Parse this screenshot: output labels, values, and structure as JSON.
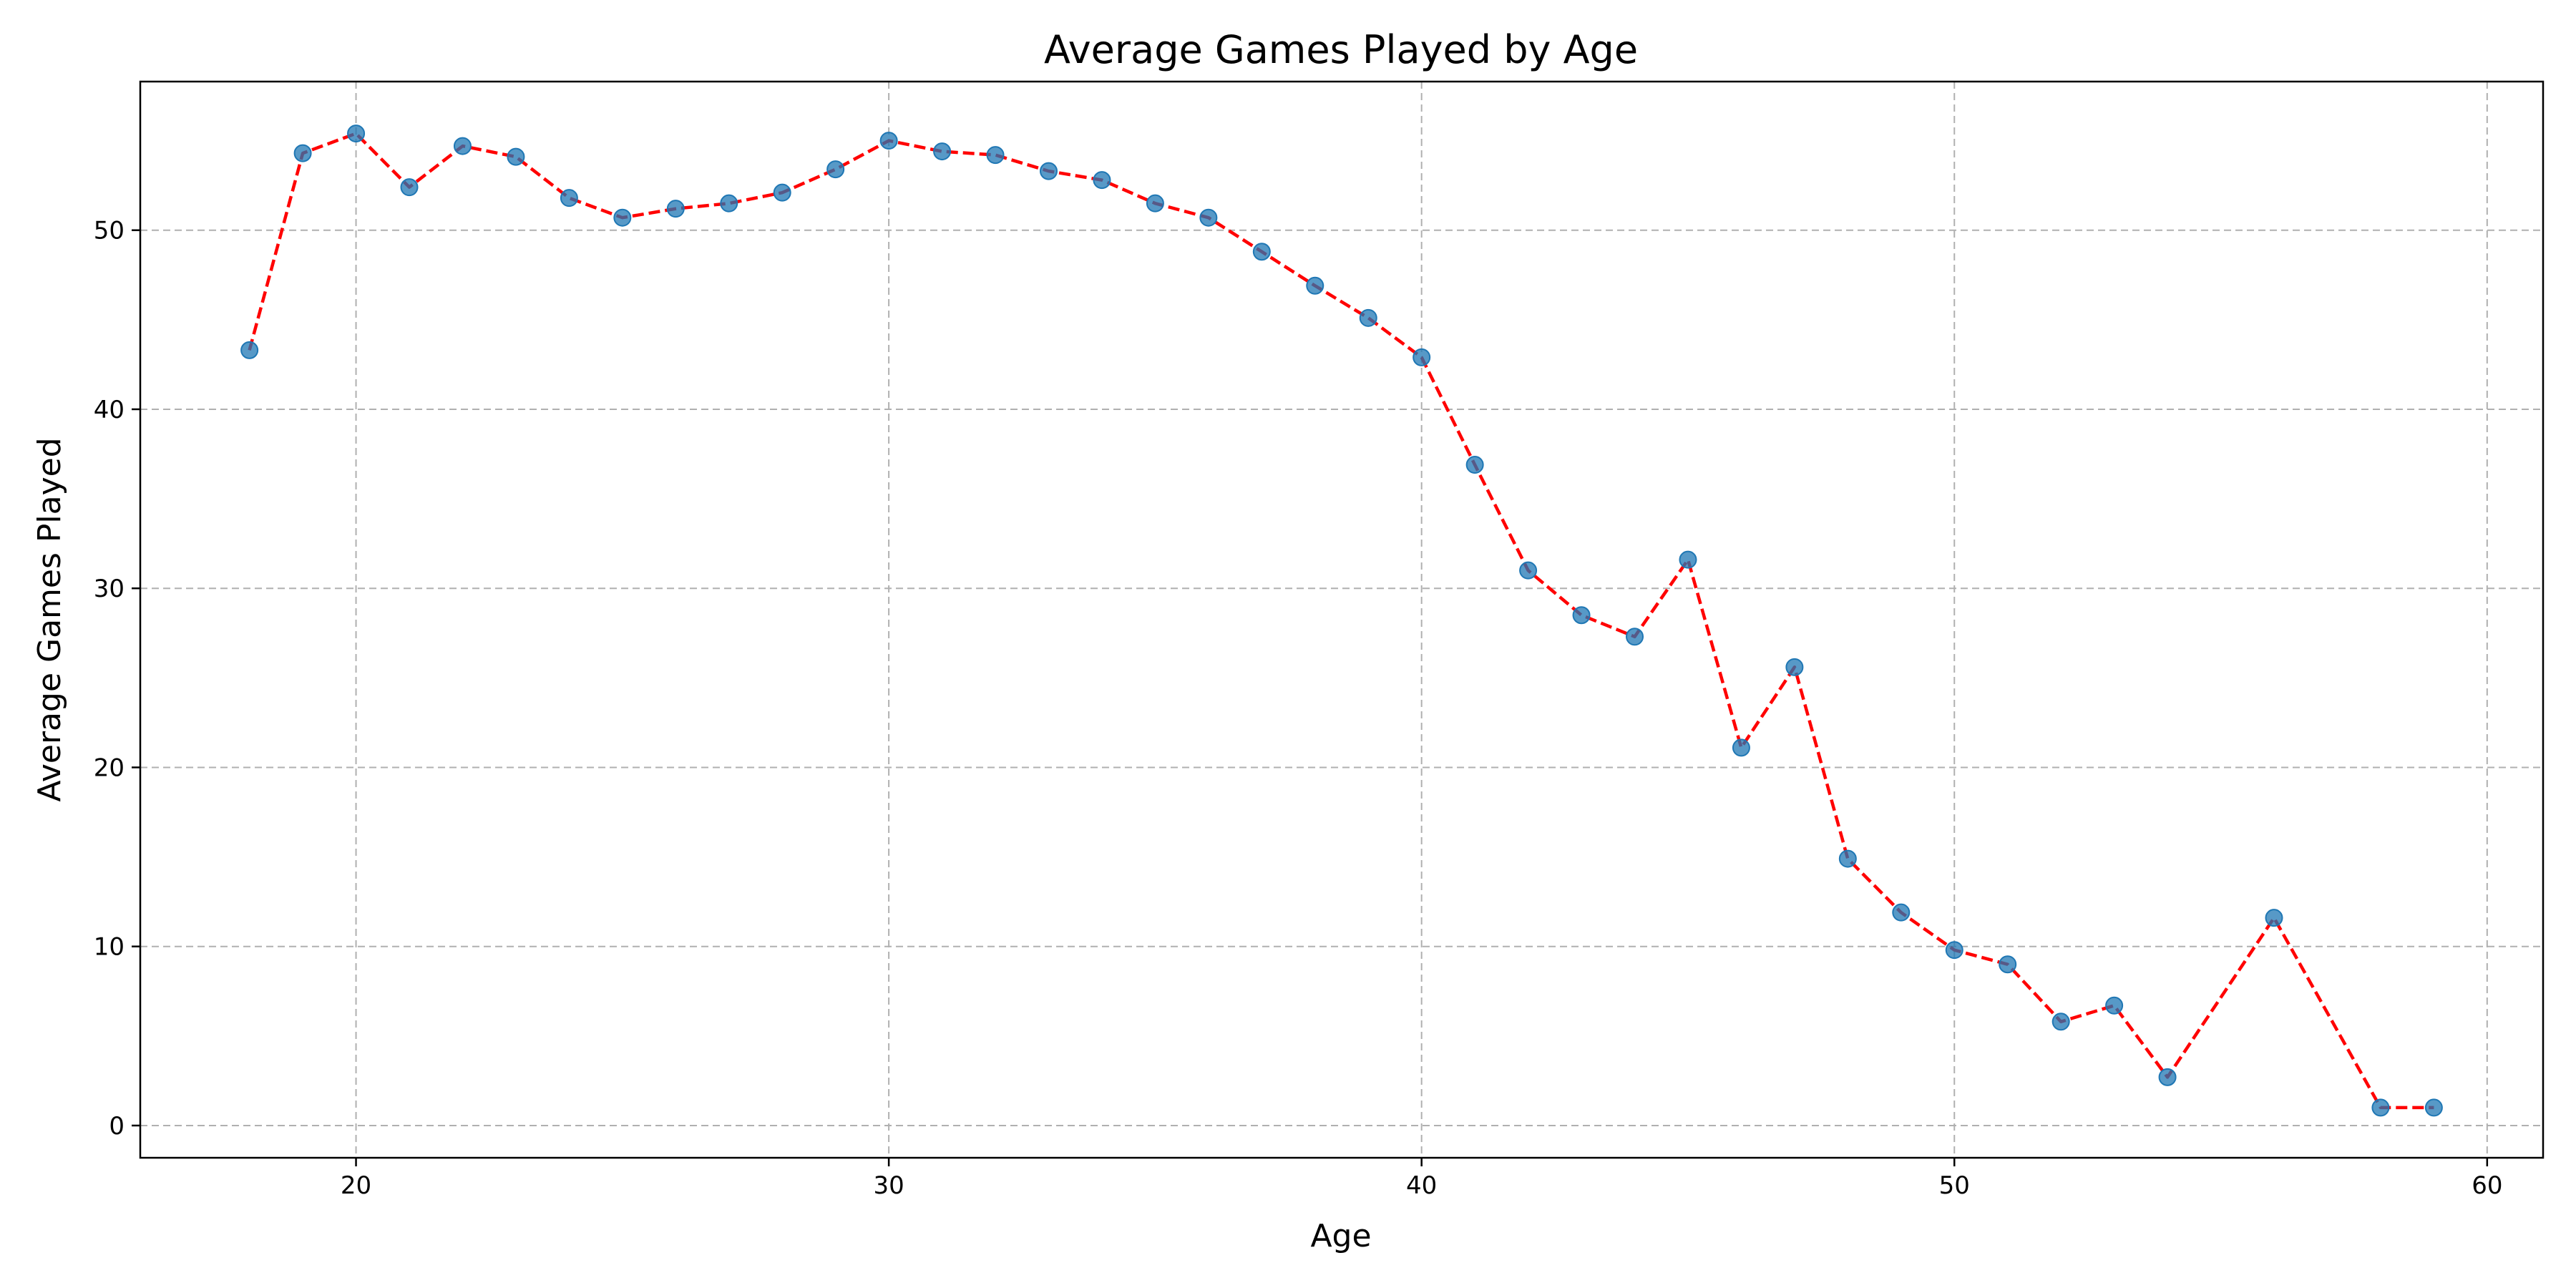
{
  "chart_data": {
    "type": "line",
    "title": "Average Games Played by Age",
    "xlabel": "Age",
    "ylabel": "Average Games Played",
    "xlim": [
      15.95,
      61.05
    ],
    "ylim": [
      -1.8,
      58.3
    ],
    "xticks": [
      20,
      30,
      40,
      50,
      60
    ],
    "yticks": [
      0,
      10,
      20,
      30,
      40,
      50
    ],
    "grid": true,
    "colors": {
      "line": "#ff0000",
      "marker": "#1f77b4",
      "grid": "#b0b0b0"
    },
    "x": [
      18,
      19,
      20,
      21,
      22,
      23,
      24,
      25,
      26,
      27,
      28,
      29,
      30,
      31,
      32,
      33,
      34,
      35,
      36,
      37,
      38,
      39,
      40,
      41,
      42,
      43,
      44,
      45,
      46,
      47,
      48,
      49,
      50,
      51,
      52,
      53,
      54,
      56,
      58,
      59
    ],
    "series": [
      {
        "values": [
          43.3,
          54.3,
          55.4,
          52.4,
          54.7,
          54.1,
          51.8,
          50.7,
          51.2,
          51.5,
          52.1,
          53.4,
          55.0,
          54.4,
          54.2,
          53.3,
          52.8,
          51.5,
          50.7,
          48.8,
          46.9,
          45.1,
          42.9,
          36.9,
          31.0,
          28.5,
          27.3,
          31.6,
          21.1,
          25.6,
          14.9,
          11.9,
          9.8,
          9.0,
          5.8,
          6.7,
          2.7,
          11.6,
          1.0,
          1.0
        ]
      }
    ]
  }
}
